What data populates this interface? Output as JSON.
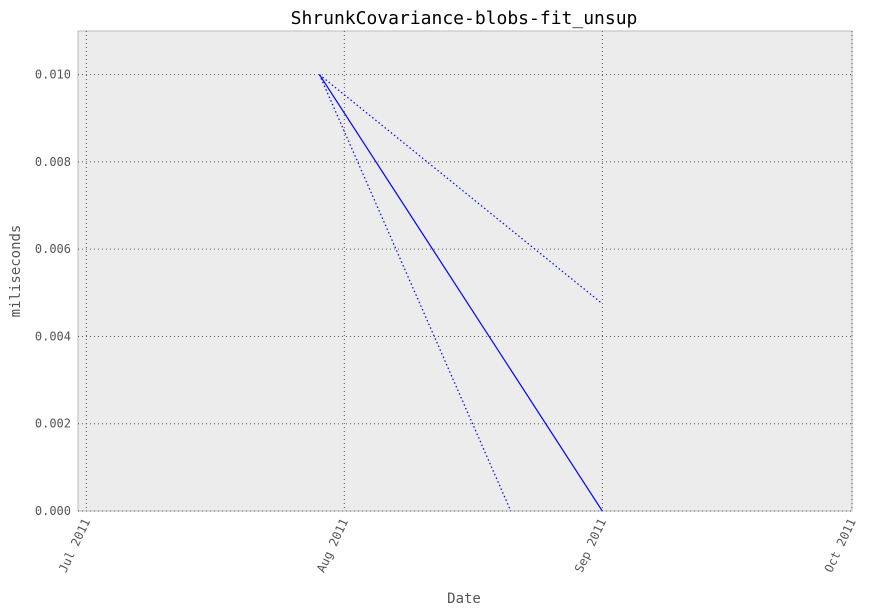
{
  "chart_data": {
    "type": "line",
    "title": "ShrunkCovariance-blobs-fit_unsup",
    "xlabel": "Date",
    "ylabel": "miliseconds",
    "x_type": "date",
    "xlim": [
      "2011-06-30",
      "2011-10-01"
    ],
    "ylim": [
      0,
      0.011
    ],
    "x_ticks": [
      {
        "date": "2011-07-01",
        "label": "Jul 2011"
      },
      {
        "date": "2011-08-01",
        "label": "Aug 2011"
      },
      {
        "date": "2011-09-01",
        "label": "Sep 2011"
      },
      {
        "date": "2011-10-01",
        "label": "Oct 2011"
      }
    ],
    "y_ticks": [
      {
        "value": 0.0,
        "label": "0.000"
      },
      {
        "value": 0.002,
        "label": "0.002"
      },
      {
        "value": 0.004,
        "label": "0.004"
      },
      {
        "value": 0.006,
        "label": "0.006"
      },
      {
        "value": 0.008,
        "label": "0.008"
      },
      {
        "value": 0.01,
        "label": "0.010"
      }
    ],
    "grid": true,
    "series": [
      {
        "style": "solid",
        "color": "#0000ff",
        "x": [
          "2011-07-29",
          "2011-09-01"
        ],
        "y": [
          0.01,
          0.0
        ]
      },
      {
        "style": "dotted",
        "color": "#0000ff",
        "x": [
          "2011-07-29",
          "2011-09-01"
        ],
        "y": [
          0.01,
          0.00475
        ]
      },
      {
        "style": "dotted",
        "color": "#0000ff",
        "x": [
          "2011-07-29",
          "2011-08-21"
        ],
        "y": [
          0.01,
          0.0
        ]
      }
    ]
  }
}
